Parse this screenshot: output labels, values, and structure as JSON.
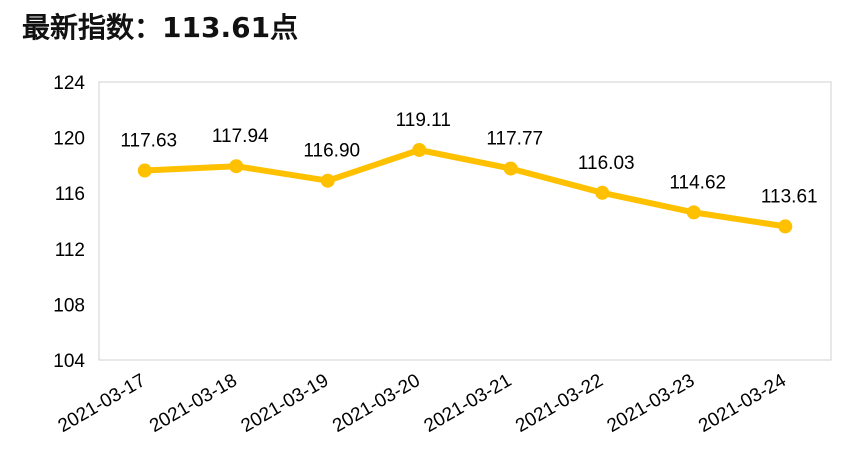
{
  "header": {
    "label": "最新指数：",
    "value": "113.61",
    "unit": "点"
  },
  "chart_data": {
    "type": "line",
    "title": "最新指数：113.61点",
    "xlabel": "",
    "ylabel": "",
    "ylim": [
      104,
      124
    ],
    "yticks": [
      "104",
      "108",
      "112",
      "116",
      "120",
      "124"
    ],
    "grid": false,
    "legend": "none",
    "color": "#FFC000",
    "categories": [
      "2021-03-17",
      "2021-03-18",
      "2021-03-19",
      "2021-03-20",
      "2021-03-21",
      "2021-03-22",
      "2021-03-23",
      "2021-03-24"
    ],
    "values": [
      117.63,
      117.94,
      116.9,
      119.11,
      117.77,
      116.03,
      114.62,
      113.61
    ],
    "data_labels": [
      "117.63",
      "117.94",
      "116.90",
      "119.11",
      "117.77",
      "116.03",
      "114.62",
      "113.61"
    ]
  }
}
